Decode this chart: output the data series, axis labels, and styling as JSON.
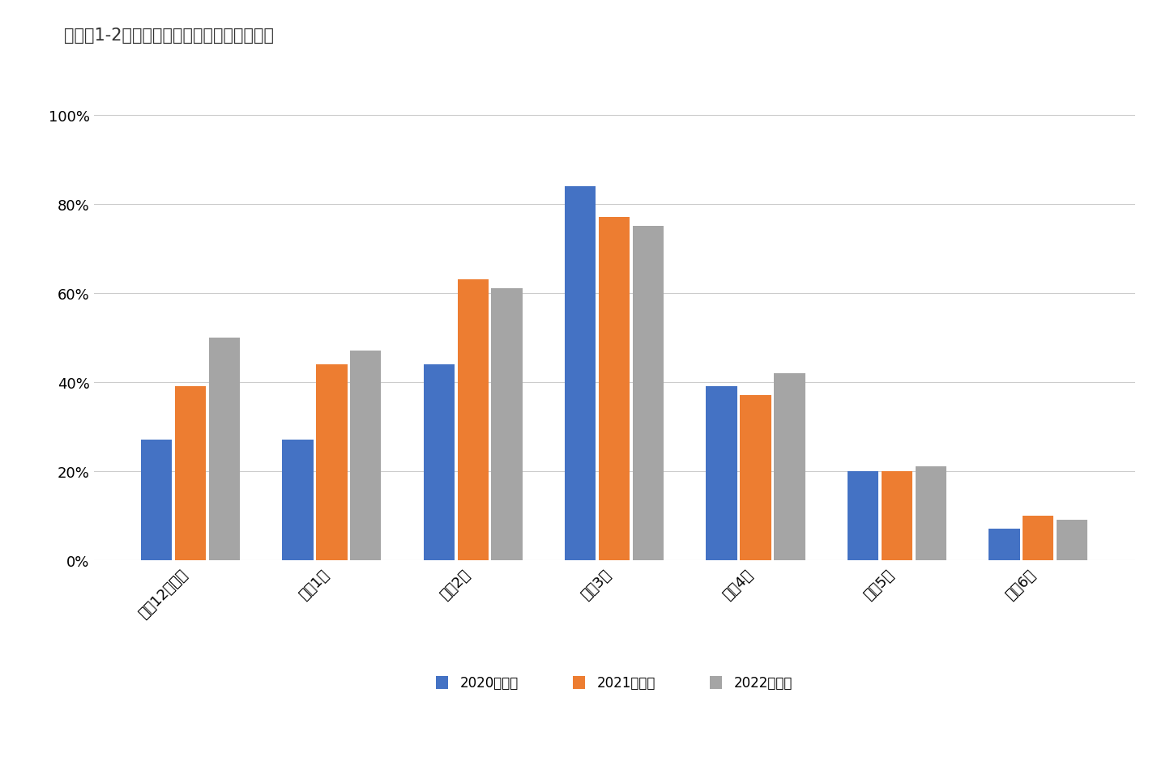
{
  "title": "》図表1-2》理糸学生のプレエントリー時期",
  "title_raw": "【図表1-2】理系学生のプレエントリー時期",
  "categories": [
    "前年12月以前",
    "今年1月",
    "今年2月",
    "今年3月",
    "今年4月",
    "今年5月",
    "今年6月"
  ],
  "series": {
    "2020卒理系": [
      0.27,
      0.27,
      0.44,
      0.84,
      0.39,
      0.2,
      0.07
    ],
    "2021卒理系": [
      0.39,
      0.44,
      0.63,
      0.77,
      0.37,
      0.2,
      0.1
    ],
    "2022卒理系": [
      0.5,
      0.47,
      0.61,
      0.75,
      0.42,
      0.21,
      0.09
    ]
  },
  "series_order": [
    "2020卒理系",
    "2021卒理系",
    "2022卒理系"
  ],
  "colors": {
    "2020卒理系": "#4472C4",
    "2021卒理系": "#ED7D31",
    "2022卒理系": "#A5A5A5"
  },
  "ylim": [
    0,
    1.05
  ],
  "yticks": [
    0,
    0.2,
    0.4,
    0.6,
    0.8,
    1.0
  ],
  "ytick_labels": [
    "0%",
    "20%",
    "40%",
    "60%",
    "80%",
    "100%"
  ],
  "background_color": "#FFFFFF",
  "title_fontsize": 15,
  "legend_fontsize": 12,
  "tick_fontsize": 13,
  "bar_width": 0.22
}
